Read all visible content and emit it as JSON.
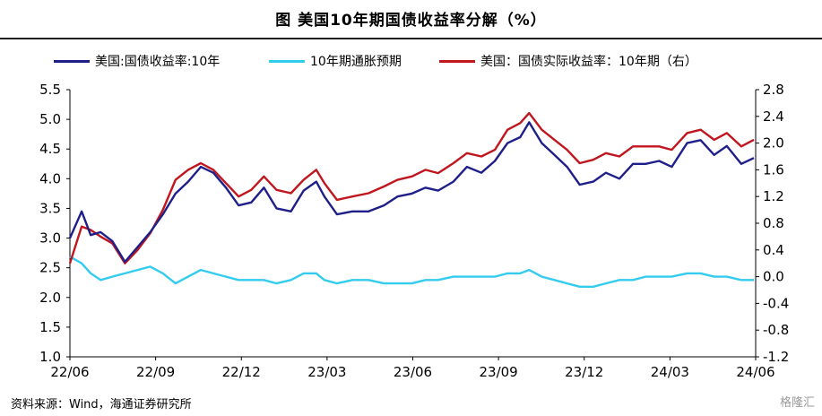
{
  "title": "图  美国10年期国债收益率分解（%）",
  "source": "资料来源：Wind，海通证券研究所",
  "watermark": "格隆汇",
  "chart_data": {
    "type": "line",
    "x_ticks": [
      "22/06",
      "22/09",
      "22/12",
      "23/03",
      "23/06",
      "23/09",
      "23/12",
      "24/03",
      "24/06"
    ],
    "x_range": [
      "2022-06-01",
      "2024-06-30"
    ],
    "left_axis": {
      "ylim": [
        1.0,
        5.5
      ],
      "ticks": [
        "1.0",
        "1.5",
        "2.0",
        "2.5",
        "3.0",
        "3.5",
        "4.0",
        "4.5",
        "5.0",
        "5.5"
      ]
    },
    "right_axis": {
      "ylim": [
        -1.2,
        2.8
      ],
      "ticks": [
        "-1.2",
        "-0.8",
        "-0.4",
        "0.0",
        "0.4",
        "0.8",
        "1.2",
        "1.6",
        "2.0",
        "2.4",
        "2.8"
      ]
    },
    "series": [
      {
        "name": "美国:国债收益率:10年",
        "axis": "left",
        "color": "#1f1f8a",
        "points": [
          [
            "2022-06-01",
            3.0
          ],
          [
            "2022-06-14",
            3.45
          ],
          [
            "2022-06-24",
            3.05
          ],
          [
            "2022-07-05",
            3.1
          ],
          [
            "2022-07-18",
            2.95
          ],
          [
            "2022-08-01",
            2.6
          ],
          [
            "2022-08-15",
            2.85
          ],
          [
            "2022-08-29",
            3.1
          ],
          [
            "2022-09-12",
            3.4
          ],
          [
            "2022-09-26",
            3.75
          ],
          [
            "2022-10-10",
            3.95
          ],
          [
            "2022-10-24",
            4.2
          ],
          [
            "2022-11-07",
            4.1
          ],
          [
            "2022-11-21",
            3.85
          ],
          [
            "2022-12-05",
            3.55
          ],
          [
            "2022-12-19",
            3.6
          ],
          [
            "2023-01-02",
            3.85
          ],
          [
            "2023-01-16",
            3.5
          ],
          [
            "2023-02-01",
            3.45
          ],
          [
            "2023-02-15",
            3.8
          ],
          [
            "2023-03-01",
            3.95
          ],
          [
            "2023-03-10",
            3.7
          ],
          [
            "2023-03-24",
            3.4
          ],
          [
            "2023-04-10",
            3.45
          ],
          [
            "2023-04-28",
            3.45
          ],
          [
            "2023-05-15",
            3.55
          ],
          [
            "2023-05-30",
            3.7
          ],
          [
            "2023-06-15",
            3.75
          ],
          [
            "2023-06-30",
            3.85
          ],
          [
            "2023-07-14",
            3.8
          ],
          [
            "2023-07-31",
            3.95
          ],
          [
            "2023-08-15",
            4.2
          ],
          [
            "2023-08-31",
            4.1
          ],
          [
            "2023-09-15",
            4.3
          ],
          [
            "2023-09-29",
            4.6
          ],
          [
            "2023-10-13",
            4.7
          ],
          [
            "2023-10-23",
            4.95
          ],
          [
            "2023-11-06",
            4.6
          ],
          [
            "2023-11-20",
            4.4
          ],
          [
            "2023-12-04",
            4.2
          ],
          [
            "2023-12-18",
            3.9
          ],
          [
            "2024-01-02",
            3.95
          ],
          [
            "2024-01-16",
            4.1
          ],
          [
            "2024-01-31",
            4.0
          ],
          [
            "2024-02-15",
            4.25
          ],
          [
            "2024-02-29",
            4.25
          ],
          [
            "2024-03-15",
            4.3
          ],
          [
            "2024-03-29",
            4.2
          ],
          [
            "2024-04-15",
            4.6
          ],
          [
            "2024-04-30",
            4.65
          ],
          [
            "2024-05-15",
            4.4
          ],
          [
            "2024-05-29",
            4.55
          ],
          [
            "2024-06-14",
            4.25
          ],
          [
            "2024-06-28",
            4.35
          ]
        ]
      },
      {
        "name": "10年期通胀预期",
        "axis": "right",
        "color": "#33ccee",
        "points": [
          [
            "2022-06-01",
            0.3
          ],
          [
            "2022-06-14",
            0.2
          ],
          [
            "2022-06-24",
            0.05
          ],
          [
            "2022-07-05",
            -0.05
          ],
          [
            "2022-07-18",
            0.0
          ],
          [
            "2022-08-01",
            0.05
          ],
          [
            "2022-08-15",
            0.1
          ],
          [
            "2022-08-29",
            0.15
          ],
          [
            "2022-09-12",
            0.05
          ],
          [
            "2022-09-26",
            -0.1
          ],
          [
            "2022-10-10",
            0.0
          ],
          [
            "2022-10-24",
            0.1
          ],
          [
            "2022-11-07",
            0.05
          ],
          [
            "2022-11-21",
            0.0
          ],
          [
            "2022-12-05",
            -0.05
          ],
          [
            "2022-12-19",
            -0.05
          ],
          [
            "2023-01-02",
            -0.05
          ],
          [
            "2023-01-16",
            -0.1
          ],
          [
            "2023-02-01",
            -0.05
          ],
          [
            "2023-02-15",
            0.05
          ],
          [
            "2023-03-01",
            0.05
          ],
          [
            "2023-03-10",
            -0.05
          ],
          [
            "2023-03-24",
            -0.1
          ],
          [
            "2023-04-10",
            -0.05
          ],
          [
            "2023-04-28",
            -0.05
          ],
          [
            "2023-05-15",
            -0.1
          ],
          [
            "2023-05-30",
            -0.1
          ],
          [
            "2023-06-15",
            -0.1
          ],
          [
            "2023-06-30",
            -0.05
          ],
          [
            "2023-07-14",
            -0.05
          ],
          [
            "2023-07-31",
            0.0
          ],
          [
            "2023-08-15",
            0.0
          ],
          [
            "2023-08-31",
            0.0
          ],
          [
            "2023-09-15",
            0.0
          ],
          [
            "2023-09-29",
            0.05
          ],
          [
            "2023-10-13",
            0.05
          ],
          [
            "2023-10-23",
            0.1
          ],
          [
            "2023-11-06",
            0.0
          ],
          [
            "2023-11-20",
            -0.05
          ],
          [
            "2023-12-04",
            -0.1
          ],
          [
            "2023-12-18",
            -0.15
          ],
          [
            "2024-01-02",
            -0.15
          ],
          [
            "2024-01-16",
            -0.1
          ],
          [
            "2024-01-31",
            -0.05
          ],
          [
            "2024-02-15",
            -0.05
          ],
          [
            "2024-02-29",
            0.0
          ],
          [
            "2024-03-15",
            0.0
          ],
          [
            "2024-03-29",
            0.0
          ],
          [
            "2024-04-15",
            0.05
          ],
          [
            "2024-04-30",
            0.05
          ],
          [
            "2024-05-15",
            0.0
          ],
          [
            "2024-05-29",
            0.0
          ],
          [
            "2024-06-14",
            -0.05
          ],
          [
            "2024-06-28",
            -0.05
          ]
        ]
      },
      {
        "name": "美国：国债实际收益率：10年期（右）",
        "axis": "right",
        "color": "#c0161e",
        "points": [
          [
            "2022-06-01",
            0.2
          ],
          [
            "2022-06-14",
            0.75
          ],
          [
            "2022-06-24",
            0.7
          ],
          [
            "2022-07-05",
            0.6
          ],
          [
            "2022-07-18",
            0.5
          ],
          [
            "2022-08-01",
            0.2
          ],
          [
            "2022-08-15",
            0.4
          ],
          [
            "2022-08-29",
            0.65
          ],
          [
            "2022-09-12",
            1.0
          ],
          [
            "2022-09-26",
            1.45
          ],
          [
            "2022-10-10",
            1.6
          ],
          [
            "2022-10-24",
            1.7
          ],
          [
            "2022-11-07",
            1.6
          ],
          [
            "2022-11-21",
            1.4
          ],
          [
            "2022-12-05",
            1.2
          ],
          [
            "2022-12-19",
            1.3
          ],
          [
            "2023-01-02",
            1.5
          ],
          [
            "2023-01-16",
            1.3
          ],
          [
            "2023-02-01",
            1.25
          ],
          [
            "2023-02-15",
            1.45
          ],
          [
            "2023-03-01",
            1.6
          ],
          [
            "2023-03-10",
            1.4
          ],
          [
            "2023-03-24",
            1.15
          ],
          [
            "2023-04-10",
            1.2
          ],
          [
            "2023-04-28",
            1.25
          ],
          [
            "2023-05-15",
            1.35
          ],
          [
            "2023-05-30",
            1.45
          ],
          [
            "2023-06-15",
            1.5
          ],
          [
            "2023-06-30",
            1.6
          ],
          [
            "2023-07-14",
            1.55
          ],
          [
            "2023-07-31",
            1.7
          ],
          [
            "2023-08-15",
            1.85
          ],
          [
            "2023-08-31",
            1.8
          ],
          [
            "2023-09-15",
            1.9
          ],
          [
            "2023-09-29",
            2.2
          ],
          [
            "2023-10-13",
            2.3
          ],
          [
            "2023-10-23",
            2.45
          ],
          [
            "2023-11-06",
            2.2
          ],
          [
            "2023-11-20",
            2.05
          ],
          [
            "2023-12-04",
            1.9
          ],
          [
            "2023-12-18",
            1.7
          ],
          [
            "2024-01-02",
            1.75
          ],
          [
            "2024-01-16",
            1.85
          ],
          [
            "2024-01-31",
            1.8
          ],
          [
            "2024-02-15",
            1.95
          ],
          [
            "2024-02-29",
            1.95
          ],
          [
            "2024-03-15",
            1.95
          ],
          [
            "2024-03-29",
            1.9
          ],
          [
            "2024-04-15",
            2.15
          ],
          [
            "2024-04-30",
            2.2
          ],
          [
            "2024-05-15",
            2.05
          ],
          [
            "2024-05-29",
            2.15
          ],
          [
            "2024-06-14",
            1.95
          ],
          [
            "2024-06-28",
            2.05
          ]
        ]
      }
    ]
  }
}
